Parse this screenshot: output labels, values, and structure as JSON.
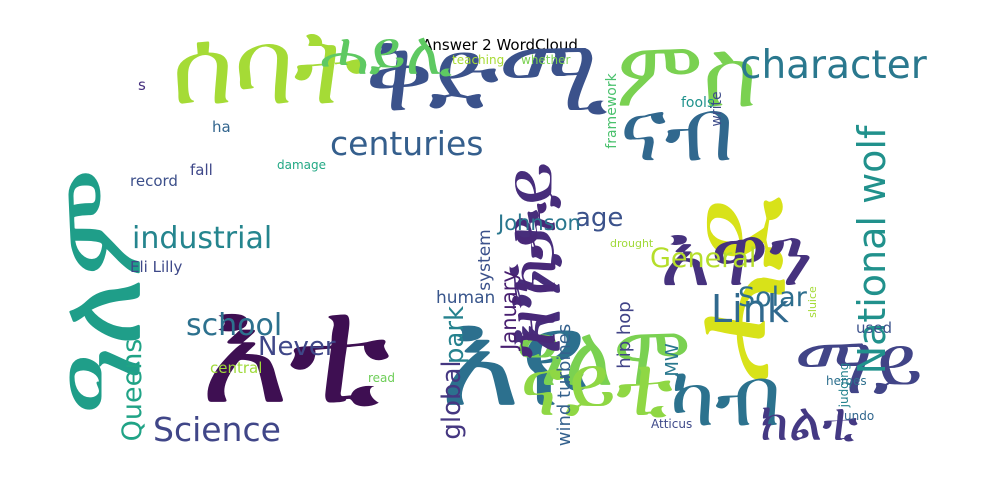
{
  "chart_data": {
    "type": "wordcloud",
    "title": "Answer 2 WordCloud",
    "colormap": "viridis",
    "words": [
      {
        "text": "እቲ",
        "weight": 1.0,
        "color": "#3e0f52"
      },
      {
        "text": "ሓደ",
        "weight": 0.92,
        "color": "#d8e219"
      },
      {
        "text": "እዩ",
        "weight": 0.9,
        "color": "#2c708e"
      },
      {
        "text": "ዓለም",
        "weight": 0.78,
        "color": "#1f9e89"
      },
      {
        "text": "ሰባት",
        "weight": 0.7,
        "color": "#a5db36"
      },
      {
        "text": "ቅድሚ",
        "weight": 0.68,
        "color": "#3b528b"
      },
      {
        "text": "ምስ",
        "weight": 0.62,
        "color": "#7ad151"
      },
      {
        "text": "ናብ",
        "weight": 0.58,
        "color": "#31688e"
      },
      {
        "text": "እዋን",
        "weight": 0.57,
        "color": "#46327e"
      },
      {
        "text": "ዓለሞ",
        "weight": 0.56,
        "color": "#7ad151"
      },
      {
        "text": "ናይቲ",
        "weight": 0.56,
        "color": "#8fd744"
      },
      {
        "text": "ካብ",
        "weight": 0.55,
        "color": "#2c728e"
      },
      {
        "text": "ማይ",
        "weight": 0.54,
        "color": "#414487"
      },
      {
        "text": "እንታይ",
        "weight": 0.52,
        "color": "#472d7b"
      },
      {
        "text": "ዝኸዱ",
        "weight": 0.46,
        "color": "#482878"
      },
      {
        "text": "ሓይሊ",
        "weight": 0.4,
        "color": "#5ec962"
      },
      {
        "text": "ክልቲ",
        "weight": 0.35,
        "color": "#443983"
      },
      {
        "text": "character",
        "weight": 0.26,
        "color": "#2a788e"
      },
      {
        "text": "National wolf",
        "weight": 0.25,
        "color": "#21918c"
      },
      {
        "text": "centuries",
        "weight": 0.22,
        "color": "#355f8d"
      },
      {
        "text": "Link",
        "weight": 0.25,
        "color": "#30698e"
      },
      {
        "text": "Science",
        "weight": 0.22,
        "color": "#404688"
      },
      {
        "text": "industrial",
        "weight": 0.2,
        "color": "#25858e"
      },
      {
        "text": "school",
        "weight": 0.2,
        "color": "#2d718e"
      },
      {
        "text": "General",
        "weight": 0.18,
        "color": "#b5de2b"
      },
      {
        "text": "Solar",
        "weight": 0.18,
        "color": "#2e6e8e"
      },
      {
        "text": "Queens",
        "weight": 0.18,
        "color": "#20a386"
      },
      {
        "text": "Never",
        "weight": 0.17,
        "color": "#3f4788"
      },
      {
        "text": "global",
        "weight": 0.17,
        "color": "#453781"
      },
      {
        "text": "park",
        "weight": 0.17,
        "color": "#26828e"
      },
      {
        "text": "age",
        "weight": 0.17,
        "color": "#3b528b"
      },
      {
        "text": "January",
        "weight": 0.14,
        "color": "#481f70"
      },
      {
        "text": "Johnson",
        "weight": 0.14,
        "color": "#2a778e"
      },
      {
        "text": "hip hop",
        "weight": 0.12,
        "color": "#404387"
      },
      {
        "text": "wind turbines",
        "weight": 0.12,
        "color": "#34618d"
      },
      {
        "text": "MW",
        "weight": 0.12,
        "color": "#29788e"
      },
      {
        "text": "Eli Lilly",
        "weight": 0.1,
        "color": "#3e4989"
      },
      {
        "text": "system",
        "weight": 0.11,
        "color": "#3b518b"
      },
      {
        "text": "human",
        "weight": 0.11,
        "color": "#39568c"
      },
      {
        "text": "central",
        "weight": 0.1,
        "color": "#9fda3a"
      },
      {
        "text": "record",
        "weight": 0.1,
        "color": "#3c4f8a"
      },
      {
        "text": "fall",
        "weight": 0.1,
        "color": "#3f4889"
      },
      {
        "text": "ha",
        "weight": 0.1,
        "color": "#32658e"
      },
      {
        "text": "used",
        "weight": 0.1,
        "color": "#3b518b"
      },
      {
        "text": "framework",
        "weight": 0.09,
        "color": "#4ac16d"
      },
      {
        "text": "fools",
        "weight": 0.09,
        "color": "#20928c"
      },
      {
        "text": "write",
        "weight": 0.09,
        "color": "#3e4c8a"
      },
      {
        "text": "whether",
        "weight": 0.08,
        "color": "#7ad151"
      },
      {
        "text": "teaching",
        "weight": 0.08,
        "color": "#a8db34"
      },
      {
        "text": "heroes",
        "weight": 0.08,
        "color": "#2e6f8e"
      },
      {
        "text": "judging",
        "weight": 0.08,
        "color": "#25838e"
      },
      {
        "text": "undo",
        "weight": 0.08,
        "color": "#31668e"
      },
      {
        "text": "Atticus",
        "weight": 0.08,
        "color": "#3e4989"
      },
      {
        "text": "damage",
        "weight": 0.08,
        "color": "#22a884"
      },
      {
        "text": "read",
        "weight": 0.08,
        "color": "#6ece58"
      },
      {
        "text": "drought",
        "weight": 0.07,
        "color": "#a0da39"
      },
      {
        "text": "sluice",
        "weight": 0.07,
        "color": "#a5db36"
      },
      {
        "text": "s",
        "weight": 0.1,
        "color": "#46307e"
      }
    ]
  }
}
